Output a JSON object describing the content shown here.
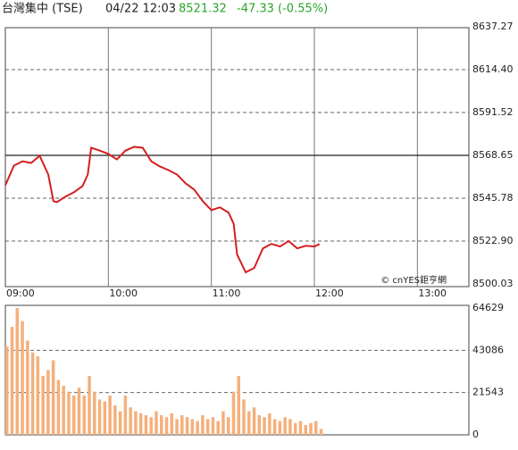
{
  "chart_data": [
    {
      "type": "line",
      "title": "台灣集中 (TSE)",
      "timestamp": "04/22 12:03",
      "last": 8521.32,
      "change": "-47.33 (-0.55%)",
      "watermark": "© cnYES鉅亨網",
      "color": "#d42020",
      "x": [
        0,
        5,
        10,
        15,
        20,
        25,
        28,
        30,
        35,
        40,
        45,
        48,
        50,
        55,
        60,
        65,
        70,
        75,
        80,
        85,
        90,
        95,
        100,
        105,
        110,
        115,
        120,
        125,
        130,
        133,
        135,
        140,
        145,
        150,
        155,
        160,
        165,
        170,
        175,
        180,
        183
      ],
      "values": [
        8552.7,
        8563.2,
        8565.5,
        8564.6,
        8568.4,
        8558.4,
        8544.2,
        8543.7,
        8546.6,
        8549.0,
        8552.3,
        8558.4,
        8572.7,
        8571.2,
        8569.4,
        8566.5,
        8571.2,
        8573.2,
        8572.7,
        8565.5,
        8562.7,
        8560.8,
        8558.4,
        8553.7,
        8550.4,
        8544.2,
        8539.4,
        8540.9,
        8538.1,
        8532.1,
        8515.7,
        8506.2,
        8508.6,
        8519.0,
        8521.4,
        8520.0,
        8522.9,
        8519.0,
        8520.4,
        8520.0,
        8521.32
      ],
      "xlim": [
        0,
        270
      ],
      "xticks": [
        {
          "value": 0,
          "label": "09:00"
        },
        {
          "value": 60,
          "label": "10:00"
        },
        {
          "value": 120,
          "label": "11:00"
        },
        {
          "value": 180,
          "label": "12:00"
        },
        {
          "value": 240,
          "label": "13:00"
        }
      ],
      "ylim": [
        8500.03,
        8637.27
      ],
      "yticks": [
        8500.03,
        {
          "value": 8522.9,
          "label": "8522.90"
        },
        8545.78,
        8568.65,
        8591.52,
        {
          "value": 8614.4,
          "label": "8614.40"
        },
        8637.27
      ],
      "reference_line": 8568.65
    },
    {
      "type": "bar",
      "color": "#f4b07c",
      "x": [
        0,
        3,
        6,
        9,
        12,
        15,
        18,
        21,
        24,
        27,
        30,
        33,
        36,
        39,
        42,
        45,
        48,
        51,
        54,
        57,
        60,
        63,
        66,
        69,
        72,
        75,
        78,
        81,
        84,
        87,
        90,
        93,
        96,
        99,
        102,
        105,
        108,
        111,
        114,
        117,
        120,
        123,
        126,
        129,
        132,
        135,
        138,
        141,
        144,
        147,
        150,
        153,
        156,
        159,
        162,
        165,
        168,
        171,
        174,
        177,
        180,
        183
      ],
      "values": [
        45000,
        55000,
        64629,
        58000,
        48000,
        42000,
        40000,
        30000,
        33000,
        38000,
        28000,
        25000,
        22000,
        20000,
        24000,
        20000,
        30000,
        22000,
        18000,
        17000,
        20000,
        15000,
        12000,
        20000,
        14000,
        12000,
        11000,
        10000,
        9000,
        12000,
        10000,
        9000,
        11000,
        8000,
        10000,
        9000,
        8000,
        7000,
        10000,
        8000,
        9000,
        7000,
        12000,
        9000,
        22000,
        30000,
        18000,
        12000,
        14000,
        10000,
        9000,
        11000,
        8000,
        7000,
        9000,
        8000,
        6000,
        7000,
        5000,
        6000,
        7000,
        3000
      ],
      "xlim": [
        0,
        270
      ],
      "ylim": [
        0,
        64629
      ],
      "yticks": [
        0,
        21543,
        43086,
        64629
      ]
    }
  ]
}
